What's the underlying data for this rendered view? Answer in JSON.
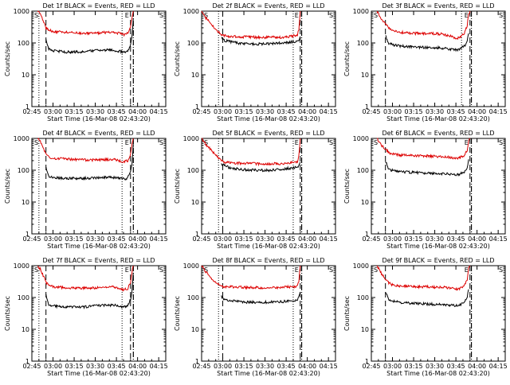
{
  "common": {
    "xlabel": "Start Time (16-Mar-08 02:43:20)",
    "ylabel": "Counts/sec",
    "xticks": [
      "02:45",
      "03:00",
      "03:15",
      "03:30",
      "03:45",
      "04:00",
      "04:15"
    ],
    "yticks": [
      "1",
      "10",
      "100",
      "1000"
    ],
    "marker_s": "S",
    "marker_e": "E",
    "colors": {
      "events": "#000000",
      "lld": "#dd0000"
    }
  },
  "chart_data": [
    {
      "type": "line",
      "title": "Det 1f BLACK = Events, RED = LLD",
      "x_range_min": [
        0,
        95
      ],
      "ylim": [
        1,
        1000
      ],
      "yscale": "log",
      "series": [
        {
          "name": "Events",
          "color": "#000000",
          "x": [
            10,
            11,
            12,
            14,
            18,
            25,
            35,
            45,
            55,
            62,
            66,
            68,
            70,
            71,
            72
          ],
          "y": [
            120,
            80,
            65,
            58,
            55,
            52,
            52,
            58,
            60,
            55,
            50,
            55,
            90,
            160,
            600
          ]
        },
        {
          "name": "LLD",
          "color": "#dd0000",
          "x": [
            4,
            6,
            8,
            10,
            12,
            15,
            20,
            30,
            40,
            50,
            58,
            62,
            65,
            68,
            70,
            71,
            72
          ],
          "y": [
            1000,
            800,
            500,
            300,
            250,
            230,
            220,
            210,
            200,
            210,
            220,
            200,
            180,
            200,
            300,
            600,
            1000
          ]
        }
      ],
      "vlines_dotted": [
        5,
        64
      ],
      "vlines_dashed": [
        10,
        70
      ],
      "vline_dashdot": [
        72
      ]
    },
    {
      "type": "line",
      "title": "Det 2f BLACK = Events, RED = LLD",
      "x_range_min": [
        0,
        95
      ],
      "ylim": [
        1,
        1000
      ],
      "yscale": "log",
      "series": [
        {
          "name": "Events",
          "color": "#000000",
          "x": [
            14,
            16,
            20,
            25,
            30,
            40,
            50,
            58,
            62,
            66,
            68,
            69,
            70
          ],
          "y": [
            140,
            120,
            110,
            100,
            95,
            92,
            95,
            100,
            105,
            110,
            110,
            120,
            160
          ]
        },
        {
          "name": "LLD",
          "color": "#dd0000",
          "x": [
            0,
            3,
            6,
            9,
            12,
            14,
            16,
            20,
            30,
            40,
            50,
            58,
            62,
            66,
            68,
            69,
            70
          ],
          "y": [
            1000,
            600,
            450,
            300,
            220,
            180,
            170,
            160,
            155,
            150,
            150,
            150,
            160,
            170,
            180,
            260,
            1000
          ]
        }
      ],
      "vlines_dotted": [
        12,
        65
      ],
      "vlines_dashed": [
        15,
        70
      ],
      "vline_dashdot": [
        71
      ]
    },
    {
      "type": "line",
      "title": "Det 3f BLACK = Events, RED = LLD",
      "x_range_min": [
        0,
        95
      ],
      "ylim": [
        1,
        1000
      ],
      "yscale": "log",
      "series": [
        {
          "name": "Events",
          "color": "#000000",
          "x": [
            10,
            12,
            14,
            20,
            30,
            40,
            50,
            55,
            60,
            63,
            66,
            68,
            69
          ],
          "y": [
            180,
            100,
            90,
            80,
            75,
            72,
            70,
            65,
            60,
            65,
            80,
            110,
            200
          ]
        },
        {
          "name": "LLD",
          "color": "#dd0000",
          "x": [
            4,
            6,
            8,
            10,
            12,
            14,
            20,
            30,
            40,
            50,
            55,
            60,
            63,
            66,
            68,
            69,
            70
          ],
          "y": [
            1000,
            700,
            500,
            400,
            300,
            250,
            220,
            200,
            200,
            190,
            170,
            140,
            150,
            200,
            350,
            800,
            1000
          ]
        }
      ],
      "vlines_dotted": [
        64
      ],
      "vlines_dashed": [
        10,
        70
      ],
      "vline_dashdot": [
        71
      ]
    },
    {
      "type": "line",
      "title": "Det 4f BLACK = Events, RED = LLD",
      "x_range_min": [
        0,
        95
      ],
      "ylim": [
        1,
        1000
      ],
      "yscale": "log",
      "series": [
        {
          "name": "Events",
          "color": "#000000",
          "x": [
            10,
            11,
            12,
            14,
            18,
            25,
            35,
            45,
            55,
            62,
            66,
            68,
            70,
            71,
            72
          ],
          "y": [
            130,
            80,
            65,
            60,
            58,
            56,
            55,
            58,
            60,
            56,
            52,
            58,
            90,
            160,
            700
          ]
        },
        {
          "name": "LLD",
          "color": "#dd0000",
          "x": [
            4,
            6,
            8,
            10,
            12,
            15,
            20,
            30,
            40,
            50,
            58,
            62,
            65,
            68,
            70,
            71,
            72
          ],
          "y": [
            1000,
            800,
            500,
            320,
            260,
            240,
            230,
            220,
            210,
            215,
            220,
            200,
            180,
            200,
            320,
            650,
            1000
          ]
        }
      ],
      "vlines_dotted": [
        5,
        64
      ],
      "vlines_dashed": [
        10,
        70
      ],
      "vline_dashdot": [
        72
      ]
    },
    {
      "type": "line",
      "title": "Det 5f BLACK = Events, RED = LLD",
      "x_range_min": [
        0,
        95
      ],
      "ylim": [
        1,
        1000
      ],
      "yscale": "log",
      "series": [
        {
          "name": "Events",
          "color": "#000000",
          "x": [
            14,
            16,
            20,
            25,
            30,
            40,
            50,
            58,
            62,
            66,
            68,
            69,
            70
          ],
          "y": [
            160,
            140,
            120,
            110,
            105,
            100,
            100,
            110,
            115,
            120,
            120,
            140,
            180
          ]
        },
        {
          "name": "LLD",
          "color": "#dd0000",
          "x": [
            0,
            3,
            6,
            9,
            12,
            14,
            16,
            20,
            30,
            40,
            50,
            58,
            62,
            66,
            68,
            69,
            70
          ],
          "y": [
            1000,
            650,
            480,
            330,
            240,
            200,
            180,
            170,
            165,
            160,
            160,
            160,
            170,
            180,
            190,
            280,
            1000
          ]
        }
      ],
      "vlines_dotted": [
        12,
        65
      ],
      "vlines_dashed": [
        15,
        70
      ],
      "vline_dashdot": [
        71
      ]
    },
    {
      "type": "line",
      "title": "Det 6f BLACK = Events, RED = LLD",
      "x_range_min": [
        0,
        95
      ],
      "ylim": [
        1,
        1000
      ],
      "yscale": "log",
      "series": [
        {
          "name": "Events",
          "color": "#000000",
          "x": [
            10,
            12,
            14,
            20,
            30,
            40,
            50,
            55,
            60,
            63,
            66,
            68,
            69
          ],
          "y": [
            200,
            120,
            100,
            90,
            85,
            80,
            78,
            75,
            72,
            75,
            90,
            120,
            220
          ]
        },
        {
          "name": "LLD",
          "color": "#dd0000",
          "x": [
            4,
            6,
            8,
            10,
            12,
            14,
            20,
            30,
            40,
            50,
            55,
            60,
            63,
            66,
            68,
            69,
            70
          ],
          "y": [
            1000,
            750,
            550,
            450,
            380,
            330,
            300,
            290,
            280,
            270,
            260,
            240,
            250,
            300,
            420,
            850,
            1000
          ]
        }
      ],
      "vlines_dotted": [],
      "vlines_dashed": [
        10,
        70
      ],
      "vline_dashdot": [
        71
      ]
    },
    {
      "type": "line",
      "title": "Det 7f BLACK = Events, RED = LLD",
      "x_range_min": [
        0,
        95
      ],
      "ylim": [
        1,
        1000
      ],
      "yscale": "log",
      "series": [
        {
          "name": "Events",
          "color": "#000000",
          "x": [
            10,
            11,
            12,
            14,
            18,
            25,
            35,
            45,
            55,
            62,
            66,
            68,
            70,
            71,
            72
          ],
          "y": [
            120,
            78,
            62,
            55,
            52,
            50,
            50,
            55,
            58,
            55,
            50,
            55,
            85,
            150,
            600
          ]
        },
        {
          "name": "LLD",
          "color": "#dd0000",
          "x": [
            4,
            6,
            8,
            10,
            12,
            15,
            20,
            30,
            40,
            50,
            58,
            62,
            65,
            68,
            70,
            71,
            72
          ],
          "y": [
            1000,
            800,
            500,
            300,
            240,
            220,
            210,
            200,
            195,
            205,
            215,
            195,
            175,
            190,
            300,
            600,
            1000
          ]
        }
      ],
      "vlines_dotted": [
        5,
        64
      ],
      "vlines_dashed": [
        10,
        70
      ],
      "vline_dashdot": [
        72
      ]
    },
    {
      "type": "line",
      "title": "Det 8f BLACK = Events, RED = LLD",
      "x_range_min": [
        0,
        95
      ],
      "ylim": [
        1,
        1000
      ],
      "yscale": "log",
      "series": [
        {
          "name": "Events",
          "color": "#000000",
          "x": [
            14,
            16,
            20,
            25,
            30,
            40,
            50,
            58,
            62,
            66,
            68,
            69,
            70
          ],
          "y": [
            110,
            90,
            80,
            75,
            72,
            70,
            72,
            75,
            78,
            80,
            80,
            100,
            150
          ]
        },
        {
          "name": "LLD",
          "color": "#dd0000",
          "x": [
            0,
            3,
            6,
            9,
            12,
            14,
            16,
            20,
            30,
            40,
            50,
            58,
            62,
            66,
            68,
            69,
            70
          ],
          "y": [
            1000,
            650,
            450,
            330,
            260,
            230,
            220,
            215,
            210,
            205,
            205,
            210,
            215,
            220,
            230,
            300,
            1000
          ]
        }
      ],
      "vlines_dotted": [
        12,
        65
      ],
      "vlines_dashed": [
        15,
        70
      ],
      "vline_dashdot": [
        71
      ]
    },
    {
      "type": "line",
      "title": "Det 9f BLACK = Events, RED = LLD",
      "x_range_min": [
        0,
        95
      ],
      "ylim": [
        1,
        1000
      ],
      "yscale": "log",
      "series": [
        {
          "name": "Events",
          "color": "#000000",
          "x": [
            10,
            12,
            14,
            20,
            30,
            40,
            50,
            55,
            60,
            63,
            66,
            68,
            69
          ],
          "y": [
            160,
            90,
            80,
            70,
            65,
            62,
            60,
            58,
            55,
            58,
            72,
            100,
            180
          ]
        },
        {
          "name": "LLD",
          "color": "#dd0000",
          "x": [
            4,
            6,
            8,
            10,
            12,
            14,
            20,
            30,
            40,
            50,
            55,
            60,
            63,
            66,
            68,
            69,
            70
          ],
          "y": [
            1000,
            700,
            500,
            380,
            300,
            260,
            230,
            220,
            215,
            210,
            200,
            180,
            190,
            230,
            350,
            800,
            1000
          ]
        }
      ],
      "vlines_dotted": [],
      "vlines_dashed": [
        10,
        70
      ],
      "vline_dashdot": [
        71
      ]
    }
  ]
}
